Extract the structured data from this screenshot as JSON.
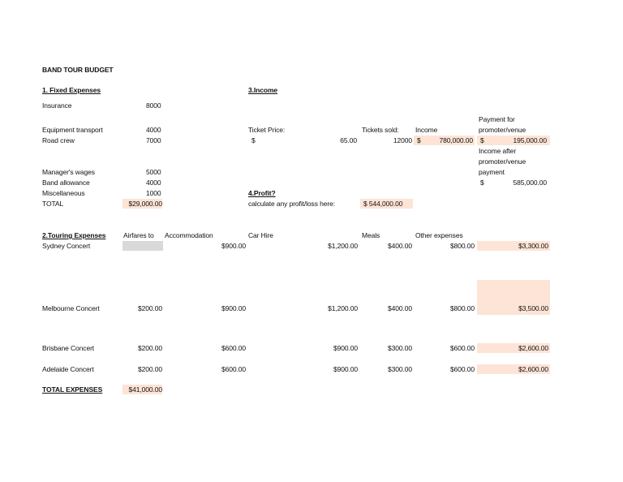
{
  "title": "BAND TOUR BUDGET",
  "fixed": {
    "heading": "1. Fixed Expenses",
    "rows": [
      {
        "label": "Insurance",
        "value": "8000"
      },
      {
        "label": "Equipment transport",
        "value": "4000"
      },
      {
        "label": "Road crew",
        "value": "7000"
      },
      {
        "label": "Manager's wages",
        "value": "5000"
      },
      {
        "label": "Band allowance",
        "value": "4000"
      },
      {
        "label": "Miscellaneous",
        "value": "1000"
      }
    ],
    "total_label": "TOTAL",
    "total_value": "$29,000.00"
  },
  "income": {
    "heading": "3.Income",
    "ticket_price_label": "Ticket Price:",
    "ticket_price_currency": "$",
    "ticket_price_value": "65.00",
    "tickets_sold_label": "Tickets sold:",
    "tickets_sold_value": "12000",
    "income_label": "Income",
    "income_currency": "$",
    "income_value": "780,000.00",
    "payment_label_1": "Payment for",
    "payment_label_2": "promoter/venue",
    "payment_currency": "$",
    "payment_value": "195,000.00",
    "after_label_1": "Income after",
    "after_label_2": "promoter/venue",
    "after_label_3": "payment",
    "after_currency": "$",
    "after_value": "585,000.00"
  },
  "profit": {
    "heading": "4.Profit?",
    "label": "calculate any profit/loss here:",
    "value": "$  544,000.00"
  },
  "touring": {
    "heading": "2.Touring Expenses",
    "columns": [
      "Airfares to",
      "Accommodation",
      "Car Hire",
      "Meals",
      "Other expenses"
    ],
    "rows": [
      {
        "name": "Sydney Concert",
        "airfare": "",
        "accommodation": "$900.00",
        "car_hire": "$1,200.00",
        "meals": "$400.00",
        "other": "$800.00",
        "total": "$3,300.00"
      },
      {
        "name": "Melbourne Concert",
        "airfare": "$200.00",
        "accommodation": "$900.00",
        "car_hire": "$1,200.00",
        "meals": "$400.00",
        "other": "$800.00",
        "total": "$3,500.00"
      },
      {
        "name": "Brisbane Concert",
        "airfare": "$200.00",
        "accommodation": "$600.00",
        "car_hire": "$900.00",
        "meals": "$300.00",
        "other": "$600.00",
        "total": "$2,600.00"
      },
      {
        "name": "Adelaide Concert",
        "airfare": "$200.00",
        "accommodation": "$600.00",
        "car_hire": "$900.00",
        "meals": "$300.00",
        "other": "$600.00",
        "total": "$2,600.00"
      }
    ],
    "total_label": "TOTAL EXPENSES",
    "total_value": "$41,000.00"
  },
  "colors": {
    "highlight": "#fde4d6",
    "empty_cell": "#d9d9d9"
  }
}
